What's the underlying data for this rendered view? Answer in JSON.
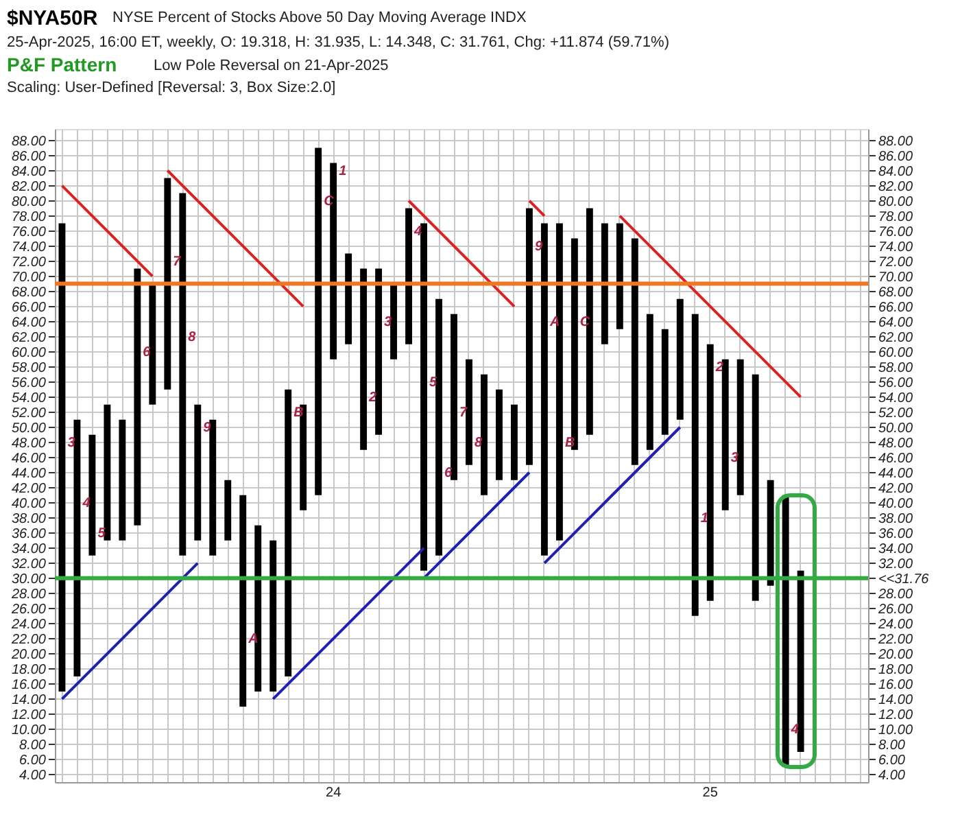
{
  "chart_data": {
    "type": "bar",
    "title": "$NYA50R",
    "subtitle": "NYSE Percent of Stocks Above 50 Day Moving Average  INDX",
    "annotations": [
      "25-Apr-2025, 16:00 ET, weekly, O: 19.318, H: 31.935, L: 14.348, C: 31.761, Chg: +11.874 (59.71%)",
      "P&F Pattern",
      "Low Pole Reversal on 21-Apr-2025",
      "Scaling: User-Defined [Reversal: 3, Box Size:2.0]",
      {
        "text": "3",
        "y": 48
      },
      {
        "text": "4",
        "y": 40
      },
      {
        "text": "5",
        "y": 36
      },
      {
        "text": "6",
        "y": 60
      },
      {
        "text": "7",
        "y": 72
      },
      {
        "text": "8",
        "y": 62
      },
      {
        "text": "9",
        "y": 50
      },
      {
        "text": "A",
        "y": 22
      },
      {
        "text": "B",
        "y": 52
      },
      {
        "text": "C",
        "y": 80
      },
      {
        "text": "1",
        "y": 84
      },
      {
        "text": "2",
        "y": 54
      },
      {
        "text": "3",
        "y": 64
      },
      {
        "text": "4",
        "y": 76
      },
      {
        "text": "5",
        "y": 56
      },
      {
        "text": "6",
        "y": 44
      },
      {
        "text": "7",
        "y": 52
      },
      {
        "text": "8",
        "y": 48
      },
      {
        "text": "9",
        "y": 74
      },
      {
        "text": "A",
        "y": 64
      },
      {
        "text": "B",
        "y": 48
      },
      {
        "text": "C",
        "y": 64
      },
      {
        "text": "1",
        "y": 38
      },
      {
        "text": "2",
        "y": 58
      },
      {
        "text": "3",
        "y": 46
      },
      {
        "text": "4",
        "y": 10
      }
    ],
    "categories": [
      null,
      null,
      null,
      null,
      null,
      null,
      null,
      null,
      null,
      null,
      null,
      null,
      null,
      null,
      null,
      null,
      null,
      null,
      "24",
      null,
      null,
      null,
      null,
      null,
      null,
      null,
      null,
      null,
      null,
      null,
      null,
      null,
      null,
      null,
      null,
      null,
      null,
      null,
      null,
      null,
      null,
      null,
      null,
      "25",
      null,
      null,
      null,
      null,
      null,
      null,
      null,
      null,
      null,
      null
    ],
    "ylim": [
      3,
      89.5
    ],
    "yticks": [
      {
        "value": 4,
        "label": "4.00"
      },
      {
        "value": 6,
        "label": "6.00"
      },
      {
        "value": 8,
        "label": "8.00"
      },
      {
        "value": 10,
        "label": "10.00"
      },
      {
        "value": 12,
        "label": "12.00"
      },
      {
        "value": 14,
        "label": "14.00"
      },
      {
        "value": 16,
        "label": "16.00"
      },
      {
        "value": 18,
        "label": "18.00"
      },
      {
        "value": 20,
        "label": "20.00"
      },
      {
        "value": 22,
        "label": "22.00"
      },
      {
        "value": 24,
        "label": "24.00"
      },
      {
        "value": 26,
        "label": "26.00"
      },
      {
        "value": 28,
        "label": "28.00"
      },
      {
        "value": 30,
        "label": "30.00"
      },
      {
        "value": 32,
        "label": "32.00"
      },
      {
        "value": 34,
        "label": "34.00"
      },
      {
        "value": 36,
        "label": "36.00"
      },
      {
        "value": 38,
        "label": "38.00"
      },
      {
        "value": 40,
        "label": "40.00"
      },
      {
        "value": 42,
        "label": "42.00"
      },
      {
        "value": 44,
        "label": "44.00"
      },
      {
        "value": 46,
        "label": "46.00"
      },
      {
        "value": 48,
        "label": "48.00"
      },
      {
        "value": 50,
        "label": "50.00"
      },
      {
        "value": 52,
        "label": "52.00"
      },
      {
        "value": 54,
        "label": "54.00"
      },
      {
        "value": 56,
        "label": "56.00"
      },
      {
        "value": 58,
        "label": "58.00"
      },
      {
        "value": 60,
        "label": "60.00"
      },
      {
        "value": 62,
        "label": "62.00"
      },
      {
        "value": 64,
        "label": "64.00"
      },
      {
        "value": 66,
        "label": "66.00"
      },
      {
        "value": 68,
        "label": "68.00"
      },
      {
        "value": 70,
        "label": "70.00"
      },
      {
        "value": 72,
        "label": "72.00"
      },
      {
        "value": 74,
        "label": "74.00"
      },
      {
        "value": 76,
        "label": "76.00"
      },
      {
        "value": 78,
        "label": "78.00"
      },
      {
        "value": 80,
        "label": "80.00"
      },
      {
        "value": 82,
        "label": "82.00"
      },
      {
        "value": 84,
        "label": "84.00"
      },
      {
        "value": 86,
        "label": "86.00"
      },
      {
        "value": 88,
        "label": "88.00"
      }
    ],
    "y2lim": [
      3,
      89.5
    ],
    "y2ticks": [
      {
        "value": 4,
        "label": "4.00"
      },
      {
        "value": 6,
        "label": "6.00"
      },
      {
        "value": 8,
        "label": "8.00"
      },
      {
        "value": 10,
        "label": "10.00"
      },
      {
        "value": 12,
        "label": "12.00"
      },
      {
        "value": 14,
        "label": "14.00"
      },
      {
        "value": 16,
        "label": "16.00"
      },
      {
        "value": 18,
        "label": "18.00"
      },
      {
        "value": 20,
        "label": "20.00"
      },
      {
        "value": 22,
        "label": "22.00"
      },
      {
        "value": 24,
        "label": "24.00"
      },
      {
        "value": 26,
        "label": "26.00"
      },
      {
        "value": 28,
        "label": "28.00"
      },
      {
        "value": 30,
        "label": "<<31.76"
      },
      {
        "value": 32,
        "label": "32.00"
      },
      {
        "value": 34,
        "label": "34.00"
      },
      {
        "value": 36,
        "label": "36.00"
      },
      {
        "value": 38,
        "label": "38.00"
      },
      {
        "value": 40,
        "label": "40.00"
      },
      {
        "value": 42,
        "label": "42.00"
      },
      {
        "value": 44,
        "label": "44.00"
      },
      {
        "value": 46,
        "label": "46.00"
      },
      {
        "value": 48,
        "label": "48.00"
      },
      {
        "value": 50,
        "label": "50.00"
      },
      {
        "value": 52,
        "label": "52.00"
      },
      {
        "value": 54,
        "label": "54.00"
      },
      {
        "value": 56,
        "label": "56.00"
      },
      {
        "value": 58,
        "label": "58.00"
      },
      {
        "value": 60,
        "label": "60.00"
      },
      {
        "value": 62,
        "label": "62.00"
      },
      {
        "value": 64,
        "label": "64.00"
      },
      {
        "value": 66,
        "label": "66.00"
      },
      {
        "value": 68,
        "label": "68.00"
      },
      {
        "value": 70,
        "label": "70.00"
      },
      {
        "value": 72,
        "label": "72.00"
      },
      {
        "value": 74,
        "label": "74.00"
      },
      {
        "value": 76,
        "label": "76.00"
      },
      {
        "value": 78,
        "label": "78.00"
      },
      {
        "value": 80,
        "label": "80.00"
      },
      {
        "value": 82,
        "label": "82.00"
      },
      {
        "value": 84,
        "label": "84.00"
      },
      {
        "value": 86,
        "label": "86.00"
      },
      {
        "value": 88,
        "label": "88.00"
      }
    ],
    "grid": true,
    "ref_lines": [
      {
        "axis": "y",
        "value": 69,
        "color": "#ee7722"
      },
      {
        "axis": "y",
        "value": 30,
        "color": "#33aa44"
      }
    ],
    "series": [
      {
        "color": "#000000",
        "base": [
          15,
          17,
          33,
          35,
          35,
          37,
          53,
          55,
          33,
          35,
          33,
          35,
          13,
          15,
          15,
          17,
          39,
          41,
          59,
          61,
          47,
          49,
          59,
          61,
          31,
          33,
          43,
          45,
          41,
          43,
          43,
          45,
          33,
          35,
          47,
          49,
          61,
          63,
          45,
          47,
          49,
          51,
          25,
          27,
          39,
          41,
          27,
          29,
          5,
          7,
          null,
          null,
          null,
          null
        ],
        "values": [
          62,
          34,
          16,
          18,
          16,
          34,
          16,
          28,
          48,
          18,
          18,
          8,
          28,
          22,
          20,
          38,
          14,
          46,
          26,
          12,
          24,
          22,
          10,
          18,
          46,
          34,
          22,
          14,
          16,
          12,
          10,
          34,
          44,
          42,
          28,
          30,
          16,
          14,
          30,
          18,
          14,
          16,
          40,
          34,
          20,
          18,
          30,
          14,
          36,
          24,
          null,
          null,
          null,
          null
        ]
      },
      {
        "type": "line",
        "color": "#dd2020",
        "values": [
          82,
          80,
          78,
          76,
          74,
          72,
          70,
          null,
          null,
          null,
          null,
          null,
          null,
          null,
          null,
          null,
          null,
          null,
          null,
          null,
          null,
          null,
          null,
          null,
          null,
          null,
          null,
          null,
          null,
          null,
          null,
          null,
          null,
          null,
          null,
          null,
          null,
          null,
          null,
          null,
          null,
          null,
          null,
          null,
          null,
          null,
          null,
          null,
          null,
          null,
          null,
          null,
          null,
          null
        ]
      },
      {
        "type": "line",
        "color": "#dd2020",
        "values": [
          null,
          null,
          null,
          null,
          null,
          null,
          null,
          84,
          82,
          80,
          78,
          76,
          74,
          72,
          70,
          68,
          66,
          null,
          null,
          null,
          null,
          null,
          null,
          null,
          null,
          null,
          null,
          null,
          null,
          null,
          null,
          null,
          null,
          null,
          null,
          null,
          null,
          null,
          null,
          null,
          null,
          null,
          null,
          null,
          null,
          null,
          null,
          null,
          null,
          null,
          null,
          null,
          null,
          null
        ]
      },
      {
        "type": "line",
        "color": "#dd2020",
        "values": [
          null,
          null,
          null,
          null,
          null,
          null,
          null,
          null,
          null,
          null,
          null,
          null,
          null,
          null,
          null,
          null,
          null,
          null,
          null,
          null,
          null,
          null,
          null,
          80,
          78,
          76,
          74,
          72,
          70,
          68,
          66,
          null,
          null,
          null,
          null,
          null,
          null,
          null,
          null,
          null,
          null,
          null,
          null,
          null,
          null,
          null,
          null,
          null,
          null,
          null,
          null,
          null,
          null,
          null
        ]
      },
      {
        "type": "line",
        "color": "#dd2020",
        "values": [
          null,
          null,
          null,
          null,
          null,
          null,
          null,
          null,
          null,
          null,
          null,
          null,
          null,
          null,
          null,
          null,
          null,
          null,
          null,
          null,
          null,
          null,
          null,
          null,
          null,
          null,
          null,
          null,
          null,
          null,
          null,
          80,
          78,
          null,
          null,
          null,
          null,
          null,
          null,
          null,
          null,
          null,
          null,
          null,
          null,
          null,
          null,
          null,
          null,
          null,
          null,
          null,
          null,
          null
        ]
      },
      {
        "type": "line",
        "color": "#dd2020",
        "values": [
          null,
          null,
          null,
          null,
          null,
          null,
          null,
          null,
          null,
          null,
          null,
          null,
          null,
          null,
          null,
          null,
          null,
          null,
          null,
          null,
          null,
          null,
          null,
          null,
          null,
          null,
          null,
          null,
          null,
          null,
          null,
          null,
          null,
          null,
          null,
          null,
          null,
          78,
          76,
          74,
          72,
          70,
          68,
          66,
          64,
          62,
          60,
          58,
          56,
          54,
          null,
          null,
          null,
          null
        ]
      },
      {
        "type": "line",
        "color": "#2020b0",
        "values": [
          14,
          16,
          18,
          20,
          22,
          24,
          26,
          28,
          30,
          32,
          null,
          null,
          null,
          null,
          null,
          null,
          null,
          null,
          null,
          null,
          null,
          null,
          null,
          null,
          null,
          null,
          null,
          null,
          null,
          null,
          null,
          null,
          null,
          null,
          null,
          null,
          null,
          null,
          null,
          null,
          null,
          null,
          null,
          null,
          null,
          null,
          null,
          null,
          null,
          null,
          null,
          null,
          null,
          null
        ]
      },
      {
        "type": "line",
        "color": "#2020b0",
        "values": [
          null,
          null,
          null,
          null,
          null,
          null,
          null,
          null,
          null,
          null,
          null,
          null,
          null,
          null,
          14,
          16,
          18,
          20,
          22,
          24,
          26,
          28,
          30,
          32,
          34,
          null,
          null,
          null,
          null,
          null,
          null,
          null,
          null,
          null,
          null,
          null,
          null,
          null,
          null,
          null,
          null,
          null,
          null,
          null,
          null,
          null,
          null,
          null,
          null,
          null,
          null,
          null,
          null,
          null
        ]
      },
      {
        "type": "line",
        "color": "#2020b0",
        "values": [
          null,
          null,
          null,
          null,
          null,
          null,
          null,
          null,
          null,
          null,
          null,
          null,
          null,
          null,
          null,
          null,
          null,
          null,
          null,
          null,
          null,
          null,
          null,
          null,
          30,
          32,
          34,
          36,
          38,
          40,
          42,
          44,
          null,
          null,
          null,
          null,
          null,
          null,
          null,
          null,
          null,
          null,
          null,
          null,
          null,
          null,
          null,
          null,
          null,
          null,
          null,
          null,
          null,
          null
        ]
      },
      {
        "type": "line",
        "color": "#2020b0",
        "values": [
          null,
          null,
          null,
          null,
          null,
          null,
          null,
          null,
          null,
          null,
          null,
          null,
          null,
          null,
          null,
          null,
          null,
          null,
          null,
          null,
          null,
          null,
          null,
          null,
          null,
          null,
          null,
          null,
          null,
          null,
          null,
          null,
          32,
          34,
          36,
          38,
          40,
          42,
          44,
          46,
          48,
          50,
          null,
          null,
          null,
          null,
          null,
          null,
          null,
          null,
          null,
          null,
          null,
          null
        ]
      }
    ]
  }
}
